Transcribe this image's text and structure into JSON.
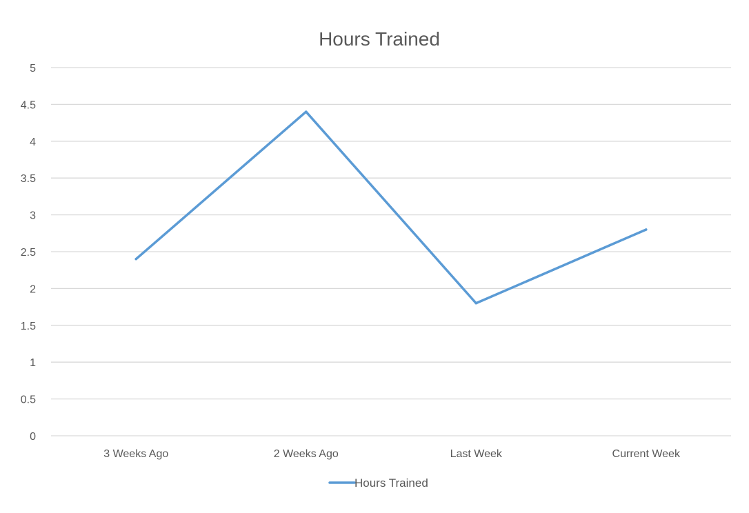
{
  "chart_data": {
    "type": "line",
    "title": "Hours Trained",
    "xlabel": "",
    "ylabel": "",
    "categories": [
      "3 Weeks Ago",
      "2 Weeks Ago",
      "Last Week",
      "Current Week"
    ],
    "series": [
      {
        "name": "Hours Trained",
        "values": [
          2.4,
          4.4,
          1.8,
          2.8
        ],
        "color": "#5b9bd5"
      }
    ],
    "ylim": [
      0,
      5
    ],
    "yticks": [
      "0",
      "0.5",
      "1",
      "1.5",
      "2",
      "2.5",
      "3",
      "3.5",
      "4",
      "4.5",
      "5"
    ],
    "grid": true,
    "legend_position": "bottom"
  }
}
